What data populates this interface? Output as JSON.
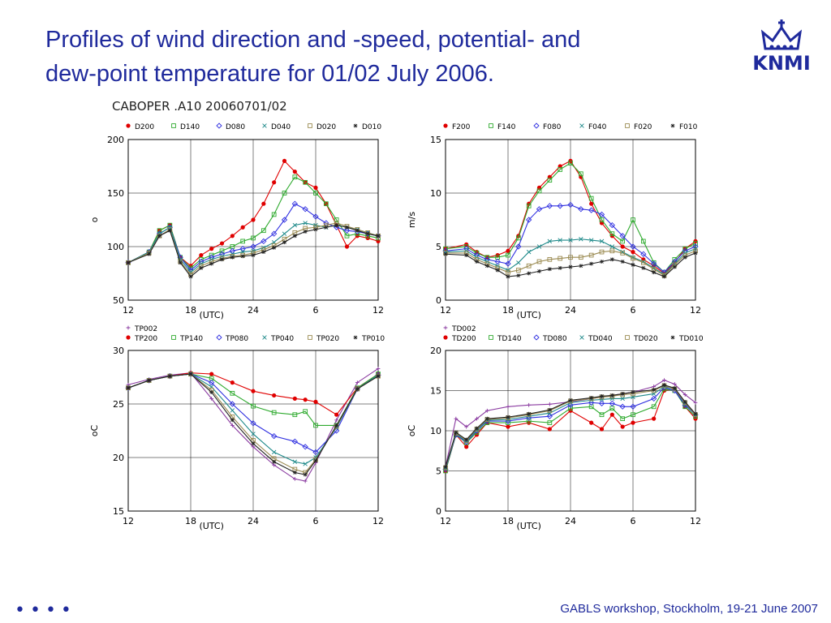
{
  "slide": {
    "title_line1": "Profiles of wind direction and -speed, potential- and",
    "title_line2": "dew-point temperature for 01/02 July 2006.",
    "logo_text": "KNMI",
    "figure_title": "CABOPER .A10 20060701/02",
    "footer": "GABLS workshop, Stockholm, 19-21 June 2007",
    "bullet_dots": "••••"
  },
  "colors": {
    "title": "#1f2a9c",
    "s200": "#e00000",
    "s140": "#2eaa2e",
    "s080": "#3030e0",
    "s040": "#1f8a8a",
    "s020": "#9a8a50",
    "s010": "#222222",
    "s002": "#8a3aa0"
  },
  "chart_data": [
    {
      "type": "line",
      "xlabel": "(UTC)",
      "ylabel": "o",
      "xticks": [
        "12",
        "18",
        "24",
        "6",
        "12"
      ],
      "ylim": [
        50,
        200
      ],
      "yticks": [
        50,
        100,
        150,
        200
      ],
      "grid": true,
      "legend_placement": "top",
      "x_hours": [
        12,
        14,
        15,
        16,
        17,
        18,
        19,
        20,
        21,
        22,
        23,
        24,
        25,
        26,
        27,
        28,
        29,
        30,
        31,
        32,
        33,
        34,
        35,
        36
      ],
      "series": [
        {
          "name": "D200",
          "marker": "dot",
          "color_key": "s200",
          "values": [
            85,
            95,
            115,
            120,
            90,
            82,
            92,
            98,
            103,
            110,
            118,
            125,
            140,
            160,
            180,
            170,
            160,
            155,
            140,
            120,
            100,
            110,
            108,
            105
          ]
        },
        {
          "name": "D140",
          "marker": "square",
          "color_key": "s140",
          "values": [
            85,
            95,
            115,
            120,
            90,
            80,
            88,
            92,
            96,
            100,
            105,
            108,
            115,
            130,
            150,
            165,
            160,
            150,
            140,
            125,
            110,
            112,
            110,
            108
          ]
        },
        {
          "name": "D080",
          "marker": "diamond",
          "color_key": "s080",
          "values": [
            85,
            95,
            112,
            118,
            90,
            78,
            86,
            90,
            93,
            96,
            98,
            100,
            105,
            112,
            125,
            140,
            135,
            128,
            122,
            118,
            115,
            114,
            112,
            110
          ]
        },
        {
          "name": "D040",
          "marker": "x",
          "color_key": "s040",
          "values": [
            85,
            95,
            112,
            118,
            88,
            76,
            84,
            88,
            91,
            93,
            95,
            96,
            99,
            104,
            112,
            120,
            122,
            120,
            118,
            120,
            118,
            116,
            113,
            110
          ]
        },
        {
          "name": "D020",
          "marker": "square",
          "color_key": "s020",
          "values": [
            85,
            94,
            110,
            116,
            86,
            74,
            82,
            86,
            89,
            91,
            92,
            94,
            97,
            101,
            107,
            113,
            117,
            118,
            120,
            122,
            119,
            116,
            113,
            110
          ]
        },
        {
          "name": "D010",
          "marker": "star",
          "color_key": "s010",
          "values": [
            85,
            93,
            110,
            115,
            85,
            72,
            80,
            84,
            88,
            90,
            91,
            92,
            95,
            99,
            104,
            110,
            114,
            116,
            118,
            120,
            118,
            115,
            112,
            110
          ]
        }
      ]
    },
    {
      "type": "line",
      "xlabel": "(UTC)",
      "ylabel": "m/s",
      "xticks": [
        "12",
        "18",
        "24",
        "6",
        "12"
      ],
      "ylim": [
        0,
        15
      ],
      "yticks": [
        0,
        5,
        10,
        15
      ],
      "grid": true,
      "legend_placement": "top",
      "x_hours": [
        12,
        14,
        15,
        16,
        17,
        18,
        19,
        20,
        21,
        22,
        23,
        24,
        25,
        26,
        27,
        28,
        29,
        30,
        31,
        32,
        33,
        34,
        35,
        36
      ],
      "series": [
        {
          "name": "F200",
          "marker": "dot",
          "color_key": "s200",
          "values": [
            4.8,
            5.2,
            4.5,
            4.0,
            4.2,
            4.6,
            6.0,
            9.0,
            10.5,
            11.5,
            12.5,
            13.0,
            11.5,
            9.0,
            7.2,
            6.0,
            5.0,
            4.5,
            3.8,
            3.2,
            2.5,
            3.5,
            4.8,
            5.5
          ]
        },
        {
          "name": "F140",
          "marker": "square",
          "color_key": "s140",
          "values": [
            4.8,
            5.0,
            4.4,
            4.0,
            4.0,
            4.2,
            5.8,
            8.8,
            10.2,
            11.2,
            12.2,
            12.8,
            11.8,
            9.5,
            7.5,
            6.2,
            5.5,
            7.5,
            5.5,
            3.5,
            2.6,
            3.8,
            4.8,
            5.3
          ]
        },
        {
          "name": "F080",
          "marker": "diamond",
          "color_key": "s080",
          "values": [
            4.6,
            4.8,
            4.2,
            3.8,
            3.6,
            3.4,
            5.0,
            7.5,
            8.5,
            8.8,
            8.8,
            8.9,
            8.5,
            8.4,
            8.0,
            7.0,
            6.0,
            5.0,
            4.3,
            3.4,
            2.6,
            3.6,
            4.6,
            5.0
          ]
        },
        {
          "name": "F040",
          "marker": "x",
          "color_key": "s040",
          "values": [
            4.5,
            4.6,
            4.0,
            3.6,
            3.2,
            2.8,
            3.5,
            4.5,
            5.0,
            5.5,
            5.6,
            5.6,
            5.7,
            5.6,
            5.5,
            5.0,
            4.5,
            4.0,
            3.6,
            3.0,
            2.4,
            3.4,
            4.4,
            4.8
          ]
        },
        {
          "name": "F020",
          "marker": "square",
          "color_key": "s020",
          "values": [
            4.4,
            4.4,
            3.8,
            3.4,
            3.0,
            2.6,
            2.8,
            3.2,
            3.6,
            3.8,
            3.9,
            4.0,
            4.0,
            4.2,
            4.5,
            4.6,
            4.4,
            3.9,
            3.5,
            2.9,
            2.3,
            3.3,
            4.2,
            4.6
          ]
        },
        {
          "name": "F010",
          "marker": "star",
          "color_key": "s010",
          "values": [
            4.3,
            4.2,
            3.6,
            3.2,
            2.8,
            2.2,
            2.3,
            2.5,
            2.7,
            2.9,
            3.0,
            3.1,
            3.2,
            3.4,
            3.6,
            3.8,
            3.6,
            3.3,
            3.0,
            2.6,
            2.2,
            3.1,
            4.0,
            4.4
          ]
        }
      ]
    },
    {
      "type": "line",
      "xlabel": "(UTC)",
      "ylabel": "oC",
      "xticks": [
        "12",
        "18",
        "24",
        "6",
        "12"
      ],
      "ylim": [
        15,
        30
      ],
      "yticks": [
        15,
        20,
        25,
        30
      ],
      "grid": true,
      "legend_placement": "top",
      "x_hours": [
        12,
        14,
        16,
        18,
        20,
        22,
        24,
        26,
        28,
        29,
        30,
        32,
        34,
        36
      ],
      "series": [
        {
          "name": "TP002",
          "marker": "plus",
          "color_key": "s002",
          "values": [
            26.8,
            27.3,
            27.7,
            27.9,
            25.5,
            23.0,
            21.0,
            19.3,
            18.0,
            17.8,
            19.5,
            23.5,
            27.0,
            28.3
          ]
        },
        {
          "name": "TP200",
          "marker": "dot",
          "color_key": "s200",
          "values": [
            26.5,
            27.2,
            27.6,
            27.9,
            27.8,
            27.0,
            26.2,
            25.8,
            25.5,
            25.4,
            25.2,
            24.0,
            26.5,
            27.8
          ]
        },
        {
          "name": "TP140",
          "marker": "square",
          "color_key": "s140",
          "values": [
            26.5,
            27.2,
            27.6,
            27.8,
            27.4,
            26.0,
            24.8,
            24.2,
            24.0,
            24.3,
            23.0,
            23.0,
            26.5,
            27.8
          ]
        },
        {
          "name": "TP080",
          "marker": "diamond",
          "color_key": "s080",
          "values": [
            26.5,
            27.2,
            27.6,
            27.8,
            27.0,
            25.0,
            23.2,
            22.0,
            21.5,
            21.0,
            20.5,
            22.5,
            26.4,
            27.7
          ]
        },
        {
          "name": "TP040",
          "marker": "x",
          "color_key": "s040",
          "values": [
            26.5,
            27.2,
            27.6,
            27.8,
            26.6,
            24.4,
            22.2,
            20.5,
            19.6,
            19.4,
            20.0,
            22.8,
            26.4,
            27.7
          ]
        },
        {
          "name": "TP020",
          "marker": "square",
          "color_key": "s020",
          "values": [
            26.5,
            27.2,
            27.6,
            27.8,
            26.3,
            23.8,
            21.6,
            19.9,
            18.9,
            18.6,
            19.8,
            22.9,
            26.4,
            27.6
          ]
        },
        {
          "name": "TP010",
          "marker": "star",
          "color_key": "s010",
          "values": [
            26.5,
            27.2,
            27.6,
            27.8,
            26.1,
            23.5,
            21.3,
            19.6,
            18.6,
            18.4,
            19.7,
            23.0,
            26.4,
            27.6
          ]
        }
      ]
    },
    {
      "type": "line",
      "xlabel": "(UTC)",
      "ylabel": "oC",
      "xticks": [
        "12",
        "18",
        "24",
        "6",
        "12"
      ],
      "ylim": [
        0,
        20
      ],
      "yticks": [
        0,
        5,
        10,
        15,
        20
      ],
      "grid": true,
      "legend_placement": "top",
      "x_hours": [
        12,
        13,
        14,
        15,
        16,
        18,
        20,
        22,
        24,
        26,
        27,
        28,
        29,
        30,
        32,
        33,
        34,
        35,
        36
      ],
      "series": [
        {
          "name": "TD002",
          "marker": "plus",
          "color_key": "s002",
          "values": [
            5.5,
            11.5,
            10.5,
            11.5,
            12.5,
            13.0,
            13.2,
            13.3,
            13.6,
            14.0,
            14.2,
            14.4,
            14.6,
            14.8,
            15.5,
            16.3,
            15.8,
            14.5,
            13.5
          ]
        },
        {
          "name": "TD200",
          "marker": "dot",
          "color_key": "s200",
          "values": [
            5.0,
            9.5,
            8.0,
            9.5,
            11.0,
            10.5,
            11.0,
            10.2,
            12.5,
            11.0,
            10.2,
            12.0,
            10.5,
            11.0,
            11.5,
            15.0,
            15.2,
            13.0,
            11.5
          ]
        },
        {
          "name": "TD140",
          "marker": "square",
          "color_key": "s140",
          "values": [
            5.0,
            9.5,
            8.5,
            9.8,
            11.0,
            11.0,
            11.2,
            11.0,
            12.8,
            13.0,
            12.0,
            12.8,
            11.5,
            12.0,
            13.0,
            15.2,
            15.0,
            13.0,
            11.8
          ]
        },
        {
          "name": "TD080",
          "marker": "diamond",
          "color_key": "s080",
          "values": [
            5.2,
            9.5,
            8.6,
            10.0,
            11.2,
            11.2,
            11.6,
            11.8,
            13.2,
            13.5,
            13.4,
            13.4,
            13.0,
            13.0,
            14.0,
            15.4,
            15.0,
            13.2,
            12.0
          ]
        },
        {
          "name": "TD040",
          "marker": "x",
          "color_key": "s040",
          "values": [
            5.3,
            9.6,
            8.7,
            10.1,
            11.3,
            11.4,
            11.8,
            12.2,
            13.5,
            13.8,
            13.9,
            14.0,
            14.0,
            14.2,
            14.6,
            15.5,
            15.2,
            13.4,
            12.0
          ]
        },
        {
          "name": "TD020",
          "marker": "square",
          "color_key": "s020",
          "values": [
            5.4,
            9.7,
            8.8,
            10.2,
            11.4,
            11.6,
            12.0,
            12.5,
            13.7,
            14.0,
            14.2,
            14.3,
            14.5,
            14.6,
            15.0,
            15.6,
            15.2,
            13.5,
            12.0
          ]
        },
        {
          "name": "TD010",
          "marker": "star",
          "color_key": "s010",
          "values": [
            5.5,
            9.8,
            8.9,
            10.3,
            11.5,
            11.7,
            12.1,
            12.6,
            13.8,
            14.1,
            14.3,
            14.4,
            14.6,
            14.8,
            15.1,
            15.7,
            15.3,
            13.6,
            12.1
          ]
        }
      ]
    }
  ]
}
